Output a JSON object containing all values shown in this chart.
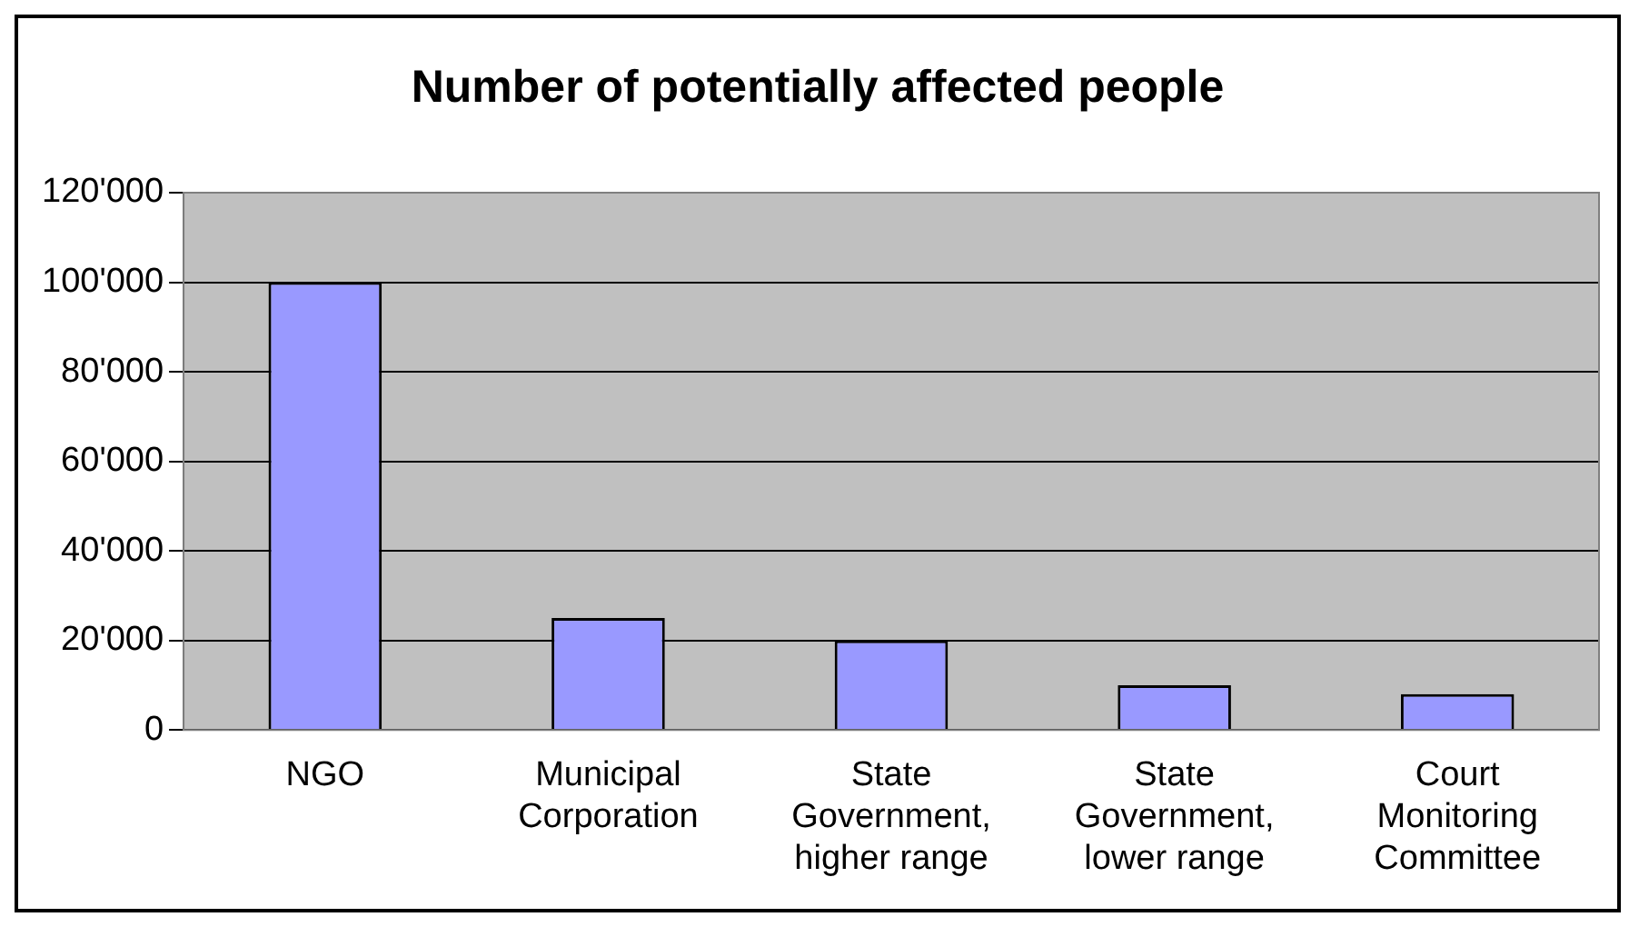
{
  "chart_data": {
    "type": "bar",
    "title": "Number of potentially affected people",
    "categories": [
      "NGO",
      "Municipal Corporation",
      "State Government, higher range",
      "State Government, lower range",
      "Court Monitoring Committee"
    ],
    "values": [
      100000,
      25000,
      20000,
      10000,
      8000
    ],
    "color": "#9999ff",
    "ylim": [
      0,
      120000
    ],
    "yticks": [
      0,
      {
        "value": 20000,
        "label": "20'000"
      },
      {
        "value": 40000,
        "label": "40'000"
      },
      {
        "value": 60000,
        "label": "60'000"
      },
      {
        "value": 80000,
        "label": "80'000"
      },
      {
        "value": 100000,
        "label": "100'000"
      },
      {
        "value": 120000,
        "label": "120'000"
      }
    ],
    "grid": "y",
    "legend": false
  }
}
